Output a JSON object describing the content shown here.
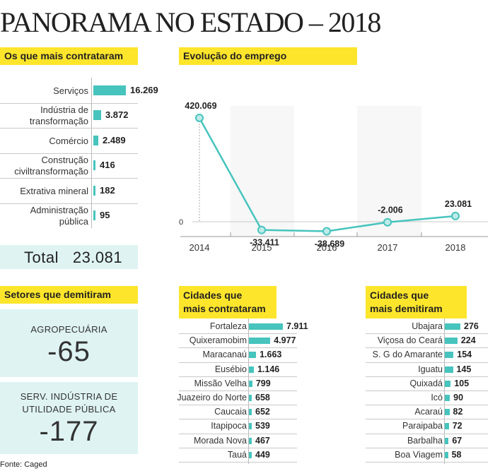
{
  "title": "PANORAMA NO ESTADO – 2018",
  "source": "Fonte: Caged",
  "chart_data": [
    {
      "type": "bar",
      "orientation": "horizontal",
      "title": "Os que mais contrataram",
      "categories": [
        "Serviços",
        "Indústria de transformação",
        "Comércio",
        "Construção civiltransformação",
        "Extrativa mineral",
        "Administração pública"
      ],
      "label_lines": [
        [
          "Serviços"
        ],
        [
          "Indústria de",
          "transformação"
        ],
        [
          "Comércio"
        ],
        [
          "Construção",
          "civiltransformação"
        ],
        [
          "Extrativa mineral"
        ],
        [
          "Administração",
          "pública"
        ]
      ],
      "values": [
        16269,
        3872,
        2489,
        416,
        182,
        95
      ],
      "value_labels": [
        "16.269",
        "3.872",
        "2.489",
        "416",
        "182",
        "95"
      ],
      "total_label": "Total",
      "total_value": "23.081",
      "colors": {
        "bar": "#46c4bd"
      }
    },
    {
      "type": "line",
      "title": "Evolução do emprego",
      "x": [
        "2014",
        "2015",
        "2016",
        "2017",
        "2018"
      ],
      "values": [
        420069,
        -33411,
        -38689,
        -2006,
        23081
      ],
      "value_labels": [
        "420.069",
        "-33.411",
        "-38.689",
        "-2.006",
        "23.081"
      ],
      "zero_label": "0",
      "ylim": [
        -60000,
        440000
      ],
      "colors": {
        "line": "#46c4bd",
        "marker_fill": "#bfeae8"
      }
    },
    {
      "type": "table",
      "title": "Setores que demitiram",
      "rows": [
        {
          "label": "AGROPECUÁRIA",
          "value": "-65"
        },
        {
          "label": "SERV. INDÚSTRIA DE UTILIDADE PÚBLICA",
          "label_lines": [
            "SERV. INDÚSTRIA DE",
            "UTILIDADE PÚBLICA"
          ],
          "value": "-177"
        }
      ]
    },
    {
      "type": "bar",
      "orientation": "horizontal",
      "title": "Cidades que mais contrataram",
      "title_lines": [
        "Cidades que",
        "mais contrataram"
      ],
      "categories": [
        "Fortaleza",
        "Quixeramobim",
        "Maracanaú",
        "Eusébio",
        "Missão Velha",
        "Juazeiro do Norte",
        "Caucaia",
        "Itapipoca",
        "Morada Nova",
        "Tauá"
      ],
      "values": [
        7911,
        4977,
        1663,
        1146,
        799,
        658,
        652,
        539,
        467,
        449
      ],
      "value_labels": [
        "7.911",
        "4.977",
        "1.663",
        "1.146",
        "799",
        "658",
        "652",
        "539",
        "467",
        "449"
      ],
      "colors": {
        "bar": "#46c4bd"
      }
    },
    {
      "type": "bar",
      "orientation": "horizontal",
      "title": "Cidades que mais demitiram",
      "title_lines": [
        "Cidades que",
        "mais demitiram"
      ],
      "categories": [
        "Ubajara",
        "Viçosa do Ceará",
        "S. G do Amarante",
        "Iguatu",
        "Quixadá",
        "Icó",
        "Acaraú",
        "Paraipaba",
        "Barbalha",
        "Boa Viagem"
      ],
      "values": [
        276,
        224,
        154,
        145,
        105,
        90,
        82,
        72,
        67,
        58
      ],
      "value_labels": [
        "276",
        "224",
        "154",
        "145",
        "105",
        "90",
        "82",
        "72",
        "67",
        "58"
      ],
      "colors": {
        "bar": "#46c4bd"
      }
    }
  ]
}
